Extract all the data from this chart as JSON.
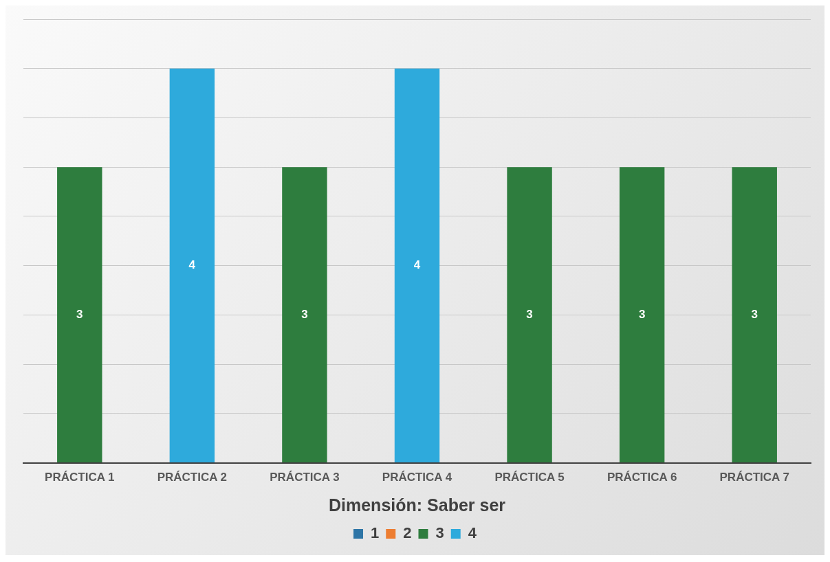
{
  "chart_data": {
    "type": "bar",
    "xlabel": "Dimensión: Saber ser",
    "categories": [
      "PRÁCTICA 1",
      "PRÁCTICA 2",
      "PRÁCTICA 3",
      "PRÁCTICA 4",
      "PRÁCTICA 5",
      "PRÁCTICA 6",
      "PRÁCTICA 7"
    ],
    "series": [
      {
        "name": "1",
        "color": "#2e75a6",
        "values": [
          null,
          null,
          null,
          null,
          null,
          null,
          null
        ]
      },
      {
        "name": "2",
        "color": "#ed7d31",
        "values": [
          null,
          null,
          null,
          null,
          null,
          null,
          null
        ]
      },
      {
        "name": "3",
        "color": "#2e7d3e",
        "values": [
          3,
          null,
          3,
          null,
          3,
          3,
          3
        ]
      },
      {
        "name": "4",
        "color": "#2eaadc",
        "values": [
          null,
          4,
          null,
          4,
          null,
          null,
          null
        ]
      }
    ],
    "ylim": [
      0,
      4.5
    ],
    "yticks": [
      {
        "value": 0,
        "label": null
      },
      {
        "value": 0.5,
        "label": null
      },
      {
        "value": 1,
        "label": null
      },
      {
        "value": 1.5,
        "label": null
      },
      {
        "value": 2,
        "label": null
      },
      {
        "value": 2.5,
        "label": null
      },
      {
        "value": 3,
        "label": null
      },
      {
        "value": 3.5,
        "label": null
      },
      {
        "value": 4,
        "label": null
      },
      {
        "value": 4.5,
        "label": null
      }
    ],
    "grid": "y",
    "legend": "bottom",
    "data_labels": true
  }
}
